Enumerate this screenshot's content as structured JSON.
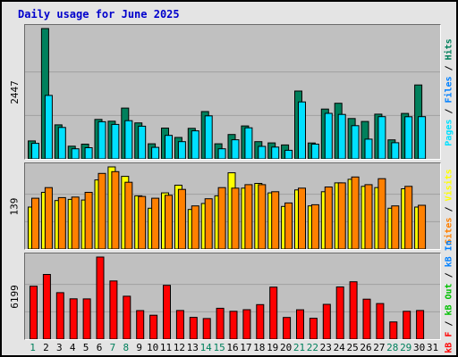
{
  "title": "Daily usage for June 2025",
  "colors": {
    "hits": "#00805c",
    "files": "#00c0ff",
    "pages": "#00e0ff",
    "visits": "#ffff00",
    "sites": "#ff8000",
    "kbin": "#0080ff",
    "kbout": "#00c000",
    "kbf": "#ff0000",
    "weekday_label": "#000000",
    "weekend_label": "#00805c"
  },
  "legend": {
    "hits_chart": [
      {
        "text": "Pages",
        "color": "#00e0ff"
      },
      {
        "text": " / ",
        "color": "#000000"
      },
      {
        "text": "Files",
        "color": "#0080ff"
      },
      {
        "text": " / ",
        "color": "#000000"
      },
      {
        "text": "Hits",
        "color": "#00805c"
      }
    ],
    "sites_chart": [
      {
        "text": "Sites",
        "color": "#ff8000"
      },
      {
        "text": " / ",
        "color": "#000000"
      },
      {
        "text": "Visits",
        "color": "#ffff00"
      }
    ],
    "kb_chart": [
      {
        "text": "kB F",
        "color": "#ff0000"
      },
      {
        "text": " / ",
        "color": "#000000"
      },
      {
        "text": "kB Out",
        "color": "#00c000"
      },
      {
        "text": " / ",
        "color": "#000000"
      },
      {
        "text": "kB In",
        "color": "#0080ff"
      }
    ]
  },
  "chart_data": [
    {
      "type": "bar",
      "name": "hits-files",
      "max_label": "2447",
      "ylim": [
        0,
        2447
      ],
      "categories": [
        "1",
        "2",
        "3",
        "4",
        "5",
        "6",
        "7",
        "8",
        "9",
        "10",
        "11",
        "12",
        "13",
        "14",
        "15",
        "16",
        "17",
        "18",
        "19",
        "20",
        "21",
        "22",
        "23",
        "24",
        "25",
        "26",
        "27",
        "28",
        "29",
        "30",
        "31"
      ],
      "weekend_days": [
        "1",
        "7",
        "8",
        "14",
        "15",
        "21",
        "22",
        "28",
        "29"
      ],
      "series": [
        {
          "name": "Hits",
          "color": "#00805c",
          "values": [
            337,
            2447,
            639,
            238,
            277,
            740,
            707,
            953,
            675,
            284,
            579,
            403,
            573,
            888,
            284,
            457,
            618,
            323,
            300,
            261,
            1273,
            298,
            935,
            1045,
            758,
            703,
            840,
            357,
            853,
            1387,
            0
          ]
        },
        {
          "name": "Files",
          "color": "#00e0ff",
          "values": [
            292,
            1192,
            590,
            190,
            209,
            697,
            647,
            717,
            614,
            217,
            440,
            323,
            526,
            808,
            190,
            358,
            583,
            235,
            222,
            161,
            1069,
            277,
            855,
            835,
            623,
            371,
            793,
            303,
            791,
            792,
            0
          ]
        }
      ]
    },
    {
      "type": "bar",
      "name": "visits-sites",
      "max_label": "139",
      "ylim": [
        0,
        139
      ],
      "categories": [
        "1",
        "2",
        "3",
        "4",
        "5",
        "6",
        "7",
        "8",
        "9",
        "10",
        "11",
        "12",
        "13",
        "14",
        "15",
        "16",
        "17",
        "18",
        "19",
        "20",
        "21",
        "22",
        "23",
        "24",
        "25",
        "26",
        "27",
        "28",
        "29",
        "30",
        "31"
      ],
      "series": [
        {
          "name": "Visits",
          "color": "#ffff00",
          "values": [
            71,
            96,
            82,
            84,
            83,
            117,
            139,
            123,
            90,
            69,
            95,
            108,
            67,
            77,
            90,
            129,
            103,
            111,
            95,
            72,
            100,
            73,
            97,
            112,
            118,
            106,
            104,
            69,
            102,
            71,
            0
          ]
        },
        {
          "name": "Sites",
          "color": "#ff8000",
          "values": [
            86,
            104,
            87,
            88,
            96,
            128,
            131,
            113,
            89,
            86,
            91,
            101,
            73,
            85,
            104,
            103,
            109,
            109,
            97,
            78,
            103,
            75,
            105,
            112,
            122,
            109,
            119,
            73,
            106,
            74,
            0
          ]
        }
      ]
    },
    {
      "type": "bar",
      "name": "kb",
      "max_label": "6199",
      "ylim": [
        0,
        6199
      ],
      "categories": [
        "1",
        "2",
        "3",
        "4",
        "5",
        "6",
        "7",
        "8",
        "9",
        "10",
        "11",
        "12",
        "13",
        "14",
        "15",
        "16",
        "17",
        "18",
        "19",
        "20",
        "21",
        "22",
        "23",
        "24",
        "25",
        "26",
        "27",
        "28",
        "29",
        "30",
        "31"
      ],
      "series": [
        {
          "name": "kB F",
          "color": "#ff0000",
          "values": [
            3993,
            4888,
            3513,
            3047,
            3036,
            6199,
            4390,
            3244,
            2159,
            1804,
            4066,
            2165,
            1642,
            1556,
            2331,
            2105,
            2221,
            2606,
            3931,
            1634,
            2219,
            1577,
            2626,
            3940,
            4333,
            3017,
            2686,
            1298,
            2103,
            2162,
            0
          ]
        }
      ]
    }
  ]
}
